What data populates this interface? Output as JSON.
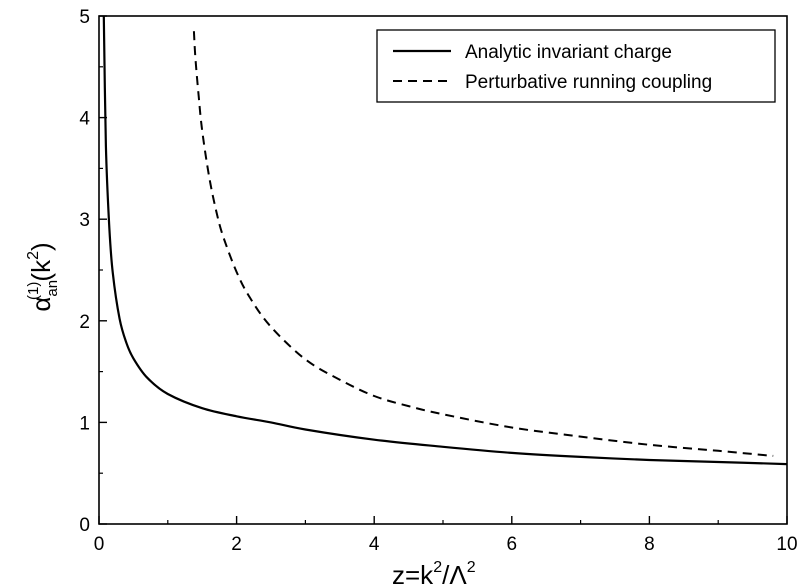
{
  "chart_data": {
    "type": "line",
    "title": "",
    "xlabel": {
      "base": "z=k",
      "sup1": "2",
      "mid": "/Λ",
      "sup2": "2"
    },
    "ylabel": {
      "alpha": "α",
      "sub": "an",
      "sup": "(1)",
      "arg": "(k",
      "argsup": "2",
      "close": ")"
    },
    "xlim": [
      0,
      10
    ],
    "ylim": [
      0,
      5
    ],
    "xticks": [
      "0",
      "2",
      "4",
      "6",
      "8",
      "10"
    ],
    "yticks": [
      "0",
      "1",
      "2",
      "3",
      "4",
      "5"
    ],
    "grid": false,
    "legend_position": "top-right",
    "series": [
      {
        "name": "Analytic invariant charge",
        "style": "solid",
        "color": "#000000",
        "x": [
          0.07,
          0.1,
          0.15,
          0.2,
          0.3,
          0.4,
          0.5,
          0.7,
          1.0,
          1.5,
          2.0,
          2.5,
          3.0,
          4.0,
          5.0,
          6.0,
          7.0,
          8.0,
          9.0,
          10.0
        ],
        "y": [
          5.0,
          3.72,
          2.92,
          2.47,
          2.02,
          1.78,
          1.63,
          1.44,
          1.28,
          1.14,
          1.06,
          1.0,
          0.93,
          0.83,
          0.76,
          0.7,
          0.66,
          0.63,
          0.61,
          0.59
        ]
      },
      {
        "name": "Perturbative running coupling",
        "style": "dashed",
        "color": "#000000",
        "x": [
          1.38,
          1.4,
          1.45,
          1.5,
          1.6,
          1.7,
          1.8,
          2.0,
          2.2,
          2.5,
          3.0,
          3.5,
          4.0,
          4.5,
          5.0,
          6.0,
          7.0,
          8.0,
          9.0,
          9.8
        ],
        "y": [
          4.85,
          4.6,
          4.2,
          3.87,
          3.42,
          3.09,
          2.84,
          2.48,
          2.22,
          1.94,
          1.62,
          1.42,
          1.26,
          1.16,
          1.08,
          0.95,
          0.86,
          0.78,
          0.72,
          0.67
        ]
      }
    ]
  }
}
